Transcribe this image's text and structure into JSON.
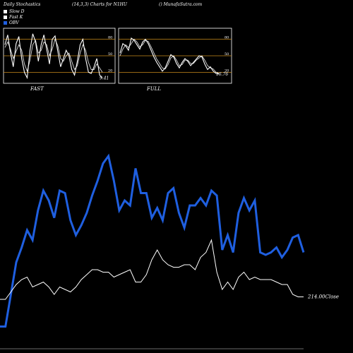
{
  "header": {
    "left": "Daily Stochastics",
    "middle": "(14,3,3) Charts for N1HU",
    "right": "() MunafaSutra.com"
  },
  "legend": [
    {
      "label": "Slow D",
      "color": "#ffffff"
    },
    {
      "label": "Fast K",
      "color": "#ffffff"
    },
    {
      "label": "OBV",
      "color": "#1f5fe0"
    }
  ],
  "colors": {
    "obv": "#1f5fe0",
    "price": "#ffffff",
    "grid": "#c98a1a"
  },
  "chart_data": [
    {
      "type": "line",
      "name": "fast-stochastic-panel",
      "label": "FAST",
      "ticks": [
        "80",
        "50",
        "20"
      ],
      "tick_values": [
        80,
        50,
        20
      ],
      "ylim": [
        0,
        100
      ],
      "last_value": "9.41",
      "series": [
        {
          "name": "Fast K",
          "values": [
            70,
            88,
            55,
            30,
            72,
            85,
            45,
            20,
            10,
            60,
            90,
            75,
            40,
            70,
            88,
            62,
            35,
            80,
            86,
            58,
            30,
            45,
            60,
            50,
            25,
            15,
            40,
            70,
            80,
            45,
            20,
            18,
            30,
            45,
            15,
            9.41
          ]
        },
        {
          "name": "Slow D",
          "values": [
            65,
            75,
            62,
            45,
            58,
            70,
            60,
            35,
            22,
            42,
            70,
            78,
            55,
            60,
            75,
            70,
            50,
            62,
            80,
            68,
            45,
            40,
            50,
            55,
            40,
            25,
            32,
            55,
            70,
            60,
            38,
            25,
            25,
            35,
            28,
            20
          ]
        }
      ]
    },
    {
      "type": "line",
      "name": "full-stochastic-panel",
      "label": "FULL",
      "ticks": [
        "80",
        "50",
        "20"
      ],
      "tick_values": [
        80,
        50,
        20
      ],
      "ylim": [
        0,
        100
      ],
      "last_value": "16.76",
      "series": [
        {
          "name": "Fast K",
          "values": [
            55,
            72,
            68,
            60,
            82,
            78,
            70,
            62,
            75,
            80,
            72,
            60,
            48,
            38,
            30,
            22,
            28,
            40,
            52,
            48,
            36,
            28,
            38,
            45,
            40,
            32,
            38,
            44,
            50,
            48,
            35,
            25,
            30,
            22,
            18,
            16.76
          ]
        },
        {
          "name": "Slow D",
          "values": [
            50,
            62,
            70,
            65,
            72,
            80,
            75,
            66,
            70,
            78,
            76,
            66,
            55,
            44,
            36,
            28,
            26,
            34,
            46,
            50,
            42,
            32,
            34,
            42,
            42,
            36,
            36,
            42,
            46,
            50,
            42,
            32,
            28,
            26,
            20,
            18
          ]
        }
      ]
    },
    {
      "type": "line",
      "name": "obv-price-chart",
      "close_label": "214.00Close",
      "series": [
        {
          "name": "OBV",
          "values": [
            5,
            5,
            18,
            31,
            37,
            44,
            40,
            52,
            60,
            56,
            49,
            60,
            59,
            48,
            42,
            46,
            51,
            58,
            64,
            71,
            74,
            64,
            52,
            56,
            54,
            69,
            59,
            59,
            49,
            53,
            48,
            59,
            61,
            51,
            45,
            54,
            54,
            57,
            54,
            60,
            58,
            36,
            42,
            35,
            51,
            57,
            52,
            56,
            35,
            34,
            35,
            37,
            33,
            36,
            41,
            42,
            35
          ]
        },
        {
          "name": "Close",
          "values": [
            16,
            16,
            19,
            22,
            24,
            25,
            21,
            22,
            23,
            21,
            18,
            21,
            20,
            19,
            21,
            24,
            26,
            28,
            28,
            27,
            27,
            25,
            26,
            27,
            28,
            23,
            23,
            26,
            32,
            36,
            32,
            30,
            29,
            29,
            30,
            30,
            28,
            33,
            35,
            40,
            27,
            20,
            23,
            20,
            25,
            27,
            24,
            25,
            24,
            24,
            24,
            23,
            22,
            22,
            18,
            17,
            17
          ]
        }
      ]
    }
  ]
}
